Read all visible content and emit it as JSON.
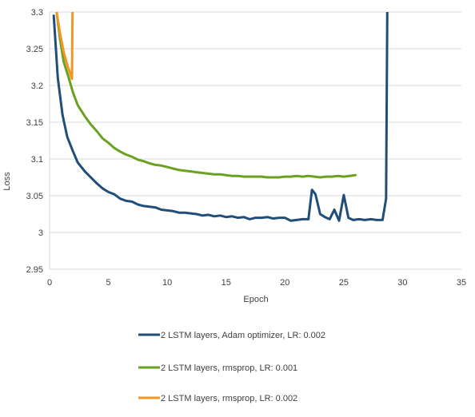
{
  "chart_data": {
    "type": "line",
    "title": "",
    "xlabel": "Epoch",
    "ylabel": "Loss",
    "xlim": [
      0,
      35
    ],
    "ylim": [
      2.95,
      3.3
    ],
    "x_ticks": [
      "0",
      "5",
      "10",
      "15",
      "20",
      "25",
      "30",
      "35"
    ],
    "y_ticks": [
      "2.95",
      "3",
      "3.05",
      "3.1",
      "3.15",
      "3.2",
      "3.25",
      "3.3"
    ],
    "grid": "horizontal",
    "legend_position": "bottom",
    "series": [
      {
        "name": "2 LSTM layers, Adam optimizer, LR: 0.002",
        "color": "#1f4e79",
        "points": [
          [
            0.35,
            3.295
          ],
          [
            0.7,
            3.21
          ],
          [
            1.1,
            3.16
          ],
          [
            1.5,
            3.13
          ],
          [
            2.0,
            3.11
          ],
          [
            2.4,
            3.095
          ],
          [
            3.0,
            3.083
          ],
          [
            3.5,
            3.075
          ],
          [
            4.0,
            3.067
          ],
          [
            4.5,
            3.06
          ],
          [
            5.0,
            3.055
          ],
          [
            5.5,
            3.052
          ],
          [
            6.0,
            3.046
          ],
          [
            6.5,
            3.043
          ],
          [
            7.0,
            3.042
          ],
          [
            7.5,
            3.038
          ],
          [
            8.0,
            3.036
          ],
          [
            8.5,
            3.035
          ],
          [
            9.0,
            3.034
          ],
          [
            9.5,
            3.031
          ],
          [
            10.0,
            3.03
          ],
          [
            10.5,
            3.029
          ],
          [
            11.0,
            3.027
          ],
          [
            11.5,
            3.027
          ],
          [
            12.0,
            3.026
          ],
          [
            12.5,
            3.025
          ],
          [
            13.0,
            3.023
          ],
          [
            13.5,
            3.024
          ],
          [
            14.0,
            3.022
          ],
          [
            14.5,
            3.023
          ],
          [
            15.0,
            3.021
          ],
          [
            15.5,
            3.022
          ],
          [
            16.0,
            3.02
          ],
          [
            16.5,
            3.021
          ],
          [
            17.0,
            3.018
          ],
          [
            17.5,
            3.02
          ],
          [
            18.0,
            3.02
          ],
          [
            18.5,
            3.021
          ],
          [
            19.0,
            3.019
          ],
          [
            19.5,
            3.02
          ],
          [
            20.0,
            3.02
          ],
          [
            20.5,
            3.016
          ],
          [
            21.0,
            3.017
          ],
          [
            21.5,
            3.018
          ],
          [
            22.0,
            3.018
          ],
          [
            22.3,
            3.058
          ],
          [
            22.6,
            3.052
          ],
          [
            23.0,
            3.025
          ],
          [
            23.4,
            3.021
          ],
          [
            23.8,
            3.018
          ],
          [
            24.2,
            3.031
          ],
          [
            24.6,
            3.016
          ],
          [
            25.0,
            3.051
          ],
          [
            25.4,
            3.02
          ],
          [
            25.8,
            3.017
          ],
          [
            26.3,
            3.018
          ],
          [
            26.8,
            3.017
          ],
          [
            27.3,
            3.018
          ],
          [
            27.8,
            3.017
          ],
          [
            28.3,
            3.017
          ],
          [
            28.6,
            3.046
          ],
          [
            28.7,
            3.3
          ]
        ]
      },
      {
        "name": "2 LSTM layers, rmsprop, LR: 0.001",
        "color": "#6aa121",
        "points": [
          [
            0.6,
            3.3
          ],
          [
            0.9,
            3.262
          ],
          [
            1.2,
            3.232
          ],
          [
            1.6,
            3.212
          ],
          [
            2.0,
            3.19
          ],
          [
            2.4,
            3.173
          ],
          [
            3.0,
            3.158
          ],
          [
            3.5,
            3.147
          ],
          [
            4.0,
            3.138
          ],
          [
            4.5,
            3.128
          ],
          [
            5.0,
            3.122
          ],
          [
            5.5,
            3.115
          ],
          [
            6.0,
            3.11
          ],
          [
            6.5,
            3.106
          ],
          [
            7.0,
            3.103
          ],
          [
            7.5,
            3.099
          ],
          [
            8.0,
            3.097
          ],
          [
            8.5,
            3.094
          ],
          [
            9.0,
            3.092
          ],
          [
            9.5,
            3.091
          ],
          [
            10.0,
            3.089
          ],
          [
            10.5,
            3.087
          ],
          [
            11.0,
            3.085
          ],
          [
            11.5,
            3.084
          ],
          [
            12.0,
            3.083
          ],
          [
            12.5,
            3.082
          ],
          [
            13.0,
            3.081
          ],
          [
            13.5,
            3.08
          ],
          [
            14.0,
            3.079
          ],
          [
            14.5,
            3.079
          ],
          [
            15.0,
            3.078
          ],
          [
            15.5,
            3.077
          ],
          [
            16.0,
            3.077
          ],
          [
            16.5,
            3.076
          ],
          [
            17.0,
            3.076
          ],
          [
            17.5,
            3.076
          ],
          [
            18.0,
            3.076
          ],
          [
            18.5,
            3.075
          ],
          [
            19.0,
            3.075
          ],
          [
            19.5,
            3.075
          ],
          [
            20.0,
            3.076
          ],
          [
            20.5,
            3.076
          ],
          [
            21.0,
            3.077
          ],
          [
            21.5,
            3.076
          ],
          [
            22.0,
            3.077
          ],
          [
            22.5,
            3.076
          ],
          [
            23.0,
            3.075
          ],
          [
            23.5,
            3.076
          ],
          [
            24.0,
            3.076
          ],
          [
            24.5,
            3.077
          ],
          [
            25.0,
            3.076
          ],
          [
            25.5,
            3.077
          ],
          [
            26.0,
            3.078
          ]
        ]
      },
      {
        "name": "2 LSTM layers, rmsprop, LR: 0.002",
        "color": "#f29624",
        "points": [
          [
            0.6,
            3.3
          ],
          [
            0.9,
            3.27
          ],
          [
            1.2,
            3.245
          ],
          [
            1.5,
            3.228
          ],
          [
            1.9,
            3.209
          ],
          [
            1.95,
            3.3
          ]
        ]
      }
    ]
  }
}
